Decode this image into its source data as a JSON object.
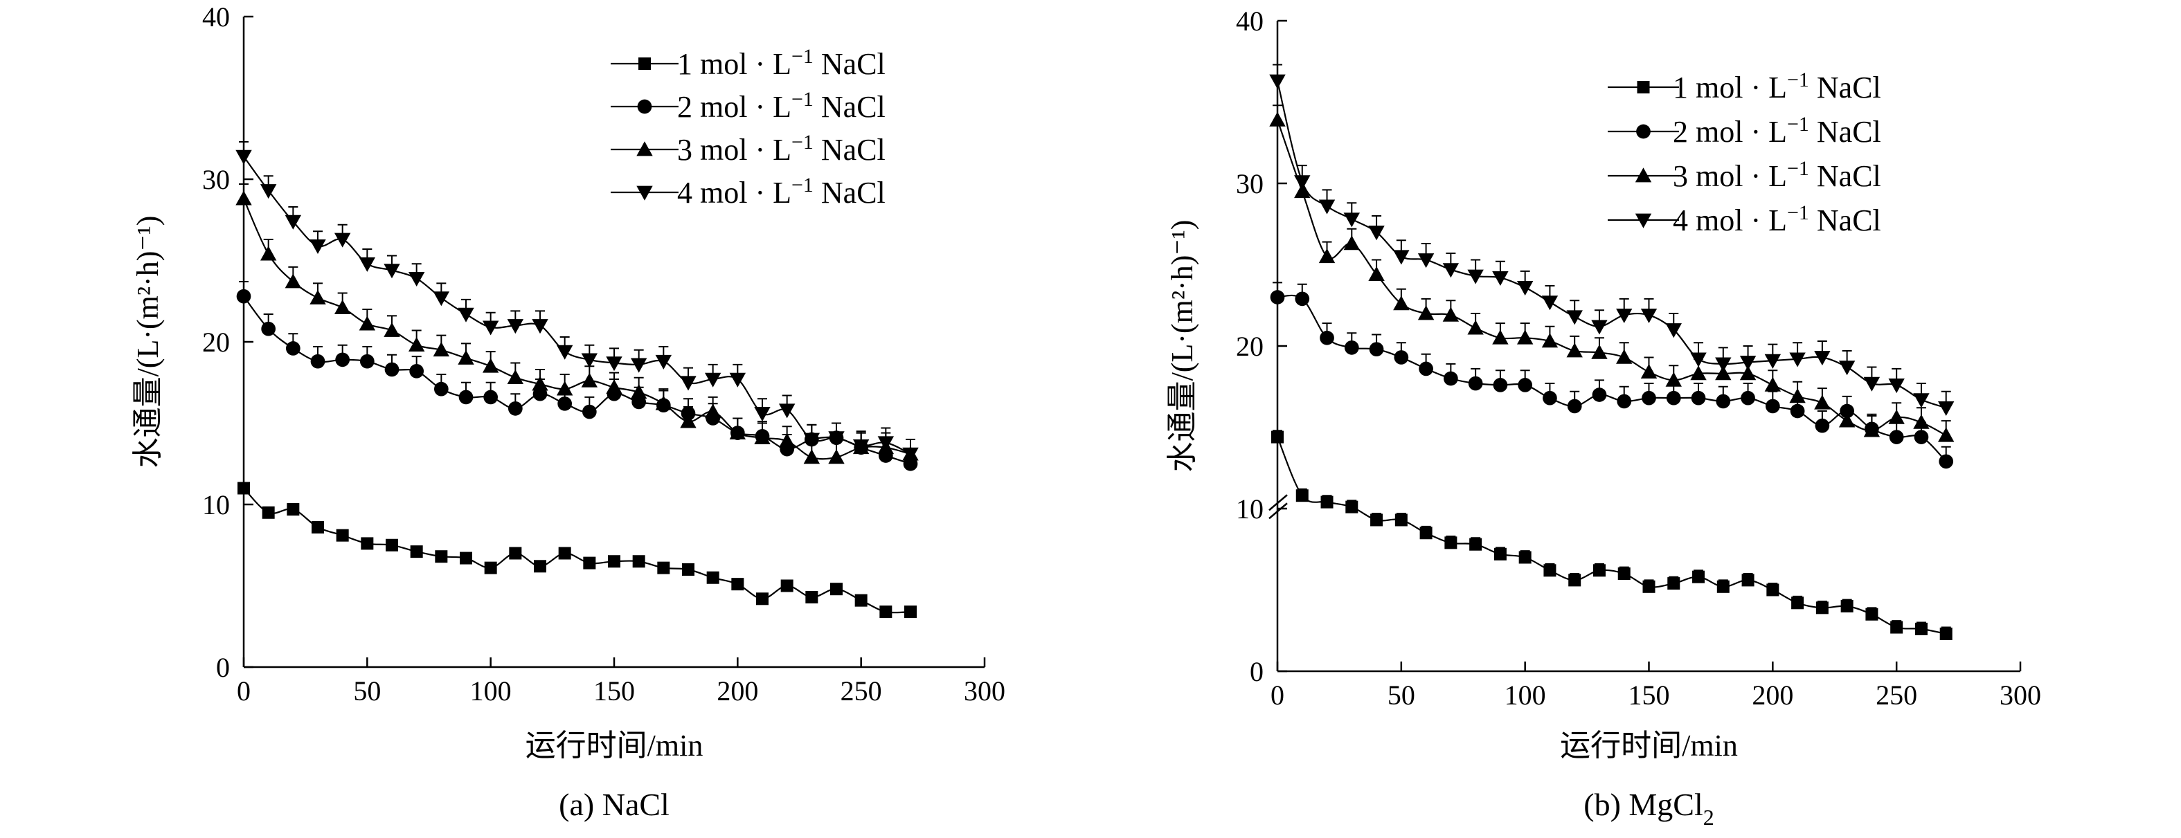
{
  "chart_data": [
    {
      "type": "line",
      "panel_caption": "(a) NaCl",
      "caption_prefix": "(a) ",
      "caption_main": "NaCl",
      "caption_sub": "",
      "xlabel": "运行时间/min",
      "ylabel": "水通量/(L·(m²·h)⁻¹)",
      "xlim": [
        0,
        300
      ],
      "ylim": [
        0,
        40
      ],
      "xticks": [
        0,
        50,
        100,
        150,
        200,
        250,
        300
      ],
      "yticks": [
        0,
        10,
        20,
        30,
        40
      ],
      "legend_position": "top-right",
      "grid": false,
      "series": [
        {
          "name": "1 mol·L⁻¹ NaCl",
          "name_prefix": "1 mol · L",
          "name_sup": "−1",
          "name_suffix": " NaCl",
          "marker": "square",
          "error": 0.2,
          "x": [
            0,
            10,
            20,
            30,
            40,
            50,
            60,
            70,
            80,
            90,
            100,
            110,
            120,
            130,
            140,
            150,
            160,
            170,
            180,
            190,
            200,
            210,
            220,
            230,
            240,
            250,
            260,
            270
          ],
          "y": [
            11.0,
            9.5,
            9.7,
            8.6,
            8.1,
            7.6,
            7.5,
            7.1,
            6.8,
            6.7,
            6.1,
            7.0,
            6.2,
            7.0,
            6.4,
            6.5,
            6.5,
            6.1,
            6.0,
            5.5,
            5.1,
            4.2,
            5.0,
            4.3,
            4.8,
            4.1,
            3.4,
            3.4
          ]
        },
        {
          "name": "2 mol·L⁻¹ NaCl",
          "name_prefix": "2 mol · L",
          "name_sup": "−1",
          "name_suffix": " NaCl",
          "marker": "circle",
          "error": 0.9,
          "x": [
            0,
            10,
            20,
            30,
            40,
            50,
            60,
            70,
            80,
            90,
            100,
            110,
            120,
            130,
            140,
            150,
            160,
            170,
            180,
            190,
            200,
            210,
            220,
            230,
            240,
            250,
            260,
            270
          ],
          "y": [
            22.8,
            20.8,
            19.6,
            18.8,
            18.9,
            18.8,
            18.3,
            18.2,
            17.1,
            16.6,
            16.6,
            15.9,
            16.8,
            16.2,
            15.7,
            16.8,
            16.3,
            16.1,
            15.6,
            15.3,
            14.4,
            14.2,
            13.4,
            14.0,
            14.1,
            13.5,
            13.0,
            12.5
          ]
        },
        {
          "name": "3 mol·L⁻¹ NaCl",
          "name_prefix": "3 mol · L",
          "name_sup": "−1",
          "name_suffix": " NaCl",
          "marker": "triangle-up",
          "error": 0.9,
          "x": [
            0,
            10,
            20,
            30,
            40,
            50,
            60,
            70,
            80,
            90,
            100,
            110,
            120,
            130,
            140,
            150,
            160,
            170,
            180,
            190,
            200,
            210,
            220,
            230,
            240,
            250,
            260,
            270
          ],
          "y": [
            28.8,
            25.4,
            23.7,
            22.7,
            22.1,
            21.1,
            20.7,
            19.8,
            19.5,
            19.0,
            18.5,
            17.8,
            17.4,
            17.1,
            17.6,
            17.2,
            16.9,
            16.2,
            15.1,
            15.7,
            14.4,
            14.1,
            13.9,
            12.9,
            12.9,
            13.5,
            13.5,
            13.1
          ]
        },
        {
          "name": "4 mol·L⁻¹ NaCl",
          "name_prefix": "4 mol · L",
          "name_sup": "−1",
          "name_suffix": " NaCl",
          "marker": "triangle-down",
          "error": 0.9,
          "x": [
            0,
            10,
            20,
            30,
            40,
            50,
            60,
            70,
            80,
            90,
            100,
            110,
            120,
            130,
            140,
            150,
            160,
            170,
            180,
            190,
            200,
            210,
            220,
            230,
            240,
            250,
            260,
            270
          ],
          "y": [
            31.4,
            29.3,
            27.4,
            25.9,
            26.3,
            24.8,
            24.4,
            23.9,
            22.7,
            21.7,
            20.9,
            21.0,
            21.0,
            19.4,
            18.9,
            18.7,
            18.6,
            18.8,
            17.5,
            17.7,
            17.7,
            15.6,
            15.8,
            14.0,
            14.1,
            13.6,
            13.8,
            13.1
          ]
        }
      ]
    },
    {
      "type": "line",
      "panel_caption": "(b) MgCl₂",
      "caption_prefix": "(b) ",
      "caption_main": "MgCl",
      "caption_sub": "2",
      "xlabel": "运行时间/min",
      "ylabel": "水通量/(L·(m²·h)⁻¹)",
      "xlim": [
        0,
        300
      ],
      "ylim": [
        0,
        40
      ],
      "xticks": [
        0,
        50,
        100,
        150,
        200,
        250,
        300
      ],
      "yticks": [
        0,
        10,
        20,
        30,
        40
      ],
      "legend_position": "top-right",
      "grid": false,
      "series": [
        {
          "name": "1 mol·L⁻¹ NaCl",
          "name_prefix": "1 mol · L",
          "name_sup": "−1",
          "name_suffix": " NaCl",
          "marker": "square",
          "error": 0.4,
          "x": [
            0,
            10,
            20,
            30,
            40,
            50,
            60,
            70,
            80,
            90,
            100,
            110,
            120,
            130,
            140,
            150,
            160,
            170,
            180,
            190,
            200,
            210,
            220,
            230,
            240,
            250,
            260,
            270
          ],
          "y": [
            14.4,
            10.8,
            10.4,
            10.1,
            9.3,
            9.3,
            8.5,
            7.9,
            7.8,
            7.2,
            7.0,
            6.2,
            5.6,
            6.2,
            6.0,
            5.2,
            5.4,
            5.8,
            5.2,
            5.6,
            5.0,
            4.2,
            3.9,
            4.0,
            3.5,
            2.7,
            2.6,
            2.3
          ]
        },
        {
          "name": "2 mol·L⁻¹ NaCl",
          "name_prefix": "2 mol · L",
          "name_sup": "−1",
          "name_suffix": " NaCl",
          "marker": "circle",
          "error": 0.9,
          "x": [
            0,
            10,
            20,
            30,
            40,
            50,
            60,
            70,
            80,
            90,
            100,
            110,
            120,
            130,
            140,
            150,
            160,
            170,
            180,
            190,
            200,
            210,
            220,
            230,
            240,
            250,
            260,
            270
          ],
          "y": [
            23.0,
            22.9,
            20.5,
            19.9,
            19.8,
            19.3,
            18.6,
            18.0,
            17.7,
            17.6,
            17.6,
            16.8,
            16.3,
            17.0,
            16.6,
            16.8,
            16.8,
            16.8,
            16.6,
            16.8,
            16.3,
            16.0,
            15.1,
            16.0,
            14.9,
            14.4,
            14.4,
            12.9
          ]
        },
        {
          "name": "3 mol·L⁻¹ NaCl",
          "name_prefix": "3 mol · L",
          "name_sup": "−1",
          "name_suffix": " NaCl",
          "marker": "triangle-up",
          "error": 0.9,
          "x": [
            0,
            10,
            20,
            30,
            40,
            50,
            60,
            70,
            80,
            90,
            100,
            110,
            120,
            130,
            140,
            150,
            160,
            170,
            180,
            190,
            200,
            210,
            220,
            230,
            240,
            250,
            260,
            270
          ],
          "y": [
            33.9,
            29.5,
            25.5,
            26.3,
            24.4,
            22.6,
            22.0,
            21.9,
            21.1,
            20.5,
            20.5,
            20.3,
            19.7,
            19.6,
            19.3,
            18.4,
            17.9,
            18.3,
            18.3,
            18.3,
            17.6,
            16.9,
            16.5,
            15.4,
            14.8,
            15.6,
            15.3,
            14.5
          ]
        },
        {
          "name": "4 mol·L⁻¹ NaCl",
          "name_prefix": "4 mol · L",
          "name_sup": "−1",
          "name_suffix": " NaCl",
          "marker": "triangle-down",
          "error": 1.0,
          "x": [
            0,
            10,
            20,
            30,
            40,
            50,
            60,
            70,
            80,
            90,
            100,
            110,
            120,
            130,
            140,
            150,
            160,
            170,
            180,
            190,
            200,
            210,
            220,
            230,
            240,
            250,
            260,
            270
          ],
          "y": [
            36.3,
            30.1,
            28.6,
            27.8,
            27.0,
            25.5,
            25.3,
            24.7,
            24.3,
            24.2,
            23.6,
            22.7,
            21.8,
            21.2,
            21.9,
            21.9,
            21.0,
            19.2,
            18.9,
            19.0,
            19.1,
            19.2,
            19.3,
            18.7,
            17.7,
            17.6,
            16.7,
            16.2
          ]
        }
      ]
    }
  ]
}
